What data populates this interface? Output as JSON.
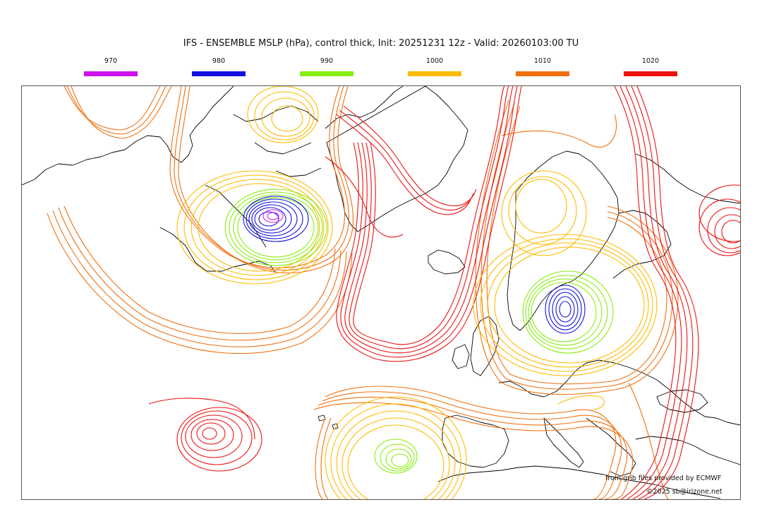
{
  "title": "IFS - ENSEMBLE MSLP (hPa), control thick, Init: 20251231 12z - Valid: 20260103:00 TU",
  "legend": [
    {
      "label": "970",
      "color": "#cc11ee"
    },
    {
      "label": "980",
      "color": "#1111dd"
    },
    {
      "label": "990",
      "color": "#88ee11"
    },
    {
      "label": "1000",
      "color": "#ffbb00"
    },
    {
      "label": "1010",
      "color": "#f07010"
    },
    {
      "label": "1020",
      "color": "#ee1111"
    }
  ],
  "credits": {
    "source": "from grib files provided by ECMWF",
    "copyright": "©2025 sb@irizone.net"
  }
}
